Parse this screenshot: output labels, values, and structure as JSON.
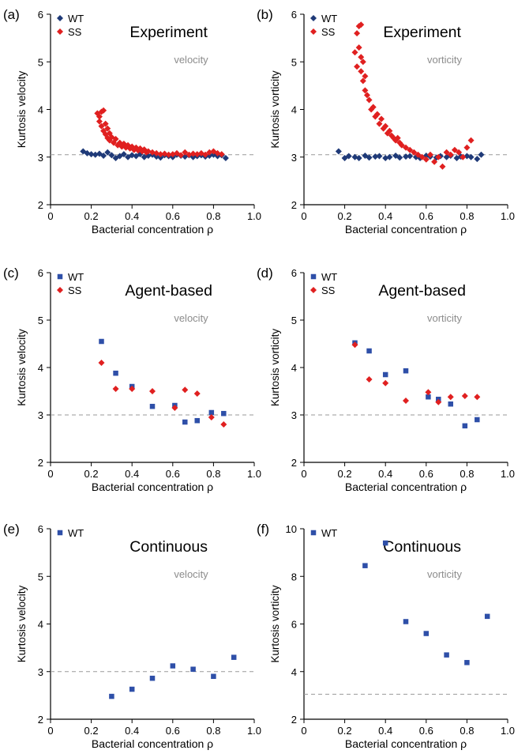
{
  "colors": {
    "wt": "#1f3a78",
    "wt_square": "#2e4fa8",
    "ss": "#e02020",
    "reference": "#9a9a9a",
    "subtitle": "#8c8c8c"
  },
  "chart_data": [
    {
      "panel": "(a)",
      "type": "scatter",
      "title": "Experiment",
      "subtitle": "velocity",
      "xlabel": "Bacterial concentration ρ",
      "ylabel": "Kurtosis velocity",
      "xlim": [
        0,
        1.0
      ],
      "ylim": [
        2,
        6
      ],
      "xticks": [
        "0",
        "0.2",
        "0.4",
        "0.6",
        "0.8",
        "1.0"
      ],
      "xtick_values": [
        0,
        0.2,
        0.4,
        0.6,
        0.8,
        1.0
      ],
      "yticks": [
        "2",
        "3",
        "4",
        "5",
        "6"
      ],
      "ytick_values": [
        2,
        3,
        4,
        5,
        6
      ],
      "reference_y": 3.05,
      "legend_position": "top-left",
      "series": [
        {
          "name": "WT",
          "marker": "diamond",
          "color": "#1f3a78",
          "x": [
            0.16,
            0.18,
            0.2,
            0.22,
            0.24,
            0.26,
            0.28,
            0.3,
            0.32,
            0.34,
            0.36,
            0.38,
            0.4,
            0.42,
            0.44,
            0.46,
            0.48,
            0.5,
            0.52,
            0.54,
            0.56,
            0.58,
            0.6,
            0.62,
            0.64,
            0.66,
            0.68,
            0.7,
            0.72,
            0.74,
            0.76,
            0.78,
            0.8,
            0.82,
            0.84,
            0.86
          ],
          "y": [
            3.12,
            3.08,
            3.06,
            3.05,
            3.07,
            3.03,
            3.1,
            3.04,
            2.98,
            3.02,
            3.06,
            3.0,
            3.04,
            3.02,
            3.06,
            3.0,
            3.03,
            3.05,
            3.01,
            2.99,
            3.04,
            3.02,
            3.0,
            3.05,
            3.03,
            3.01,
            3.04,
            3.0,
            3.02,
            3.04,
            3.01,
            3.03,
            3.05,
            3.02,
            3.04,
            2.98
          ]
        },
        {
          "name": "SS",
          "marker": "diamond",
          "color": "#e02020",
          "x": [
            0.23,
            0.24,
            0.24,
            0.25,
            0.25,
            0.26,
            0.26,
            0.27,
            0.27,
            0.28,
            0.28,
            0.29,
            0.29,
            0.3,
            0.31,
            0.32,
            0.33,
            0.34,
            0.35,
            0.36,
            0.37,
            0.38,
            0.39,
            0.4,
            0.41,
            0.42,
            0.43,
            0.44,
            0.45,
            0.46,
            0.47,
            0.48,
            0.5,
            0.52,
            0.54,
            0.56,
            0.58,
            0.6,
            0.62,
            0.64,
            0.66,
            0.68,
            0.7,
            0.72,
            0.74,
            0.76,
            0.78,
            0.8,
            0.82,
            0.84
          ],
          "y": [
            3.92,
            3.85,
            3.75,
            3.95,
            3.65,
            3.98,
            3.55,
            3.7,
            3.48,
            3.6,
            3.4,
            3.5,
            3.35,
            3.42,
            3.3,
            3.38,
            3.25,
            3.3,
            3.22,
            3.28,
            3.2,
            3.25,
            3.18,
            3.22,
            3.15,
            3.2,
            3.14,
            3.18,
            3.12,
            3.16,
            3.1,
            3.12,
            3.1,
            3.08,
            3.06,
            3.07,
            3.05,
            3.06,
            3.08,
            3.04,
            3.1,
            3.05,
            3.07,
            3.06,
            3.08,
            3.05,
            3.1,
            3.12,
            3.08,
            3.06
          ]
        }
      ]
    },
    {
      "panel": "(b)",
      "type": "scatter",
      "title": "Experiment",
      "subtitle": "vorticity",
      "xlabel": "Bacterial concentration ρ",
      "ylabel": "Kurtosis vorticity",
      "xlim": [
        0,
        1.0
      ],
      "ylim": [
        2,
        6
      ],
      "xticks": [
        "0",
        "0.2",
        "0.4",
        "0.6",
        "0.8",
        "1.0"
      ],
      "xtick_values": [
        0,
        0.2,
        0.4,
        0.6,
        0.8,
        1.0
      ],
      "yticks": [
        "2",
        "3",
        "4",
        "5",
        "6"
      ],
      "ytick_values": [
        2,
        3,
        4,
        5,
        6
      ],
      "reference_y": 3.05,
      "legend_position": "top-left",
      "series": [
        {
          "name": "WT",
          "marker": "diamond",
          "color": "#1f3a78",
          "x": [
            0.17,
            0.2,
            0.22,
            0.25,
            0.27,
            0.3,
            0.32,
            0.35,
            0.37,
            0.4,
            0.42,
            0.45,
            0.47,
            0.5,
            0.52,
            0.55,
            0.57,
            0.6,
            0.62,
            0.65,
            0.67,
            0.7,
            0.72,
            0.75,
            0.77,
            0.8,
            0.82,
            0.85,
            0.87
          ],
          "y": [
            3.12,
            2.98,
            3.02,
            3.0,
            2.98,
            3.03,
            2.99,
            3.01,
            3.02,
            2.98,
            3.0,
            3.03,
            2.99,
            3.01,
            3.02,
            3.0,
            2.98,
            3.03,
            3.01,
            2.99,
            3.02,
            3.0,
            3.03,
            2.98,
            3.01,
            3.02,
            3.0,
            2.96,
            3.05
          ]
        },
        {
          "name": "SS",
          "marker": "diamond",
          "color": "#e02020",
          "x": [
            0.25,
            0.26,
            0.26,
            0.27,
            0.27,
            0.28,
            0.28,
            0.28,
            0.29,
            0.29,
            0.3,
            0.3,
            0.31,
            0.32,
            0.33,
            0.34,
            0.35,
            0.36,
            0.37,
            0.38,
            0.39,
            0.4,
            0.41,
            0.42,
            0.43,
            0.44,
            0.45,
            0.46,
            0.47,
            0.48,
            0.5,
            0.52,
            0.54,
            0.56,
            0.58,
            0.6,
            0.62,
            0.64,
            0.66,
            0.68,
            0.7,
            0.72,
            0.74,
            0.76,
            0.78,
            0.8,
            0.82
          ],
          "y": [
            5.2,
            5.6,
            4.9,
            5.75,
            5.3,
            5.78,
            4.8,
            5.1,
            4.6,
            5.0,
            4.4,
            4.7,
            4.3,
            4.2,
            4.0,
            4.05,
            3.85,
            3.9,
            3.7,
            3.8,
            3.6,
            3.65,
            3.5,
            3.55,
            3.45,
            3.4,
            3.35,
            3.4,
            3.3,
            3.25,
            3.2,
            3.15,
            3.1,
            3.05,
            3.0,
            2.95,
            3.05,
            2.9,
            3.0,
            2.8,
            3.1,
            3.05,
            3.15,
            3.1,
            3.0,
            3.2,
            3.35
          ]
        }
      ]
    },
    {
      "panel": "(c)",
      "type": "scatter",
      "title": "Agent-based",
      "subtitle": "velocity",
      "xlabel": "Bacterial concentration ρ",
      "ylabel": "Kurtosis velocity",
      "xlim": [
        0,
        1.0
      ],
      "ylim": [
        2,
        6
      ],
      "xticks": [
        "0",
        "0.2",
        "0.4",
        "0.6",
        "0.8",
        "1.0"
      ],
      "xtick_values": [
        0,
        0.2,
        0.4,
        0.6,
        0.8,
        1.0
      ],
      "yticks": [
        "2",
        "3",
        "4",
        "5",
        "6"
      ],
      "ytick_values": [
        2,
        3,
        4,
        5,
        6
      ],
      "reference_y": 3.0,
      "legend_position": "top-left",
      "series": [
        {
          "name": "WT",
          "marker": "square",
          "color": "#2e4fa8",
          "x": [
            0.25,
            0.32,
            0.4,
            0.5,
            0.61,
            0.66,
            0.72,
            0.79,
            0.85
          ],
          "y": [
            4.55,
            3.88,
            3.6,
            3.18,
            3.2,
            2.85,
            2.88,
            3.05,
            3.03
          ]
        },
        {
          "name": "SS",
          "marker": "diamond",
          "color": "#e02020",
          "x": [
            0.25,
            0.32,
            0.4,
            0.5,
            0.61,
            0.66,
            0.72,
            0.79,
            0.85
          ],
          "y": [
            4.1,
            3.55,
            3.55,
            3.5,
            3.15,
            3.53,
            3.45,
            2.95,
            2.8
          ]
        }
      ]
    },
    {
      "panel": "(d)",
      "type": "scatter",
      "title": "Agent-based",
      "subtitle": "vorticity",
      "xlabel": "Bacterial concentration ρ",
      "ylabel": "Kurtosis vorticity",
      "xlim": [
        0,
        1.0
      ],
      "ylim": [
        2,
        6
      ],
      "xticks": [
        "0",
        "0.2",
        "0.4",
        "0.6",
        "0.8",
        "1.0"
      ],
      "xtick_values": [
        0,
        0.2,
        0.4,
        0.6,
        0.8,
        1.0
      ],
      "yticks": [
        "2",
        "3",
        "4",
        "5",
        "6"
      ],
      "ytick_values": [
        2,
        3,
        4,
        5,
        6
      ],
      "reference_y": 3.0,
      "legend_position": "top-left",
      "series": [
        {
          "name": "WT",
          "marker": "square",
          "color": "#2e4fa8",
          "x": [
            0.25,
            0.32,
            0.4,
            0.5,
            0.61,
            0.66,
            0.72,
            0.79,
            0.85
          ],
          "y": [
            4.52,
            4.35,
            3.85,
            3.93,
            3.38,
            3.33,
            3.23,
            2.77,
            2.9
          ]
        },
        {
          "name": "SS",
          "marker": "diamond",
          "color": "#e02020",
          "x": [
            0.25,
            0.32,
            0.4,
            0.5,
            0.61,
            0.66,
            0.72,
            0.79,
            0.85
          ],
          "y": [
            4.48,
            3.75,
            3.67,
            3.3,
            3.48,
            3.27,
            3.38,
            3.4,
            3.38
          ]
        }
      ]
    },
    {
      "panel": "(e)",
      "type": "scatter",
      "title": "Continuous",
      "subtitle": "velocity",
      "xlabel": "Bacterial concentration ρ",
      "ylabel": "Kurtosis velocity",
      "xlim": [
        0,
        1.0
      ],
      "ylim": [
        2,
        6
      ],
      "xticks": [
        "0",
        "0.2",
        "0.4",
        "0.6",
        "0.8",
        "1.0"
      ],
      "xtick_values": [
        0,
        0.2,
        0.4,
        0.6,
        0.8,
        1.0
      ],
      "yticks": [
        "2",
        "3",
        "4",
        "5",
        "6"
      ],
      "ytick_values": [
        2,
        3,
        4,
        5,
        6
      ],
      "reference_y": 3.0,
      "legend_position": "top-left",
      "series": [
        {
          "name": "WT",
          "marker": "square",
          "color": "#2e4fa8",
          "x": [
            0.3,
            0.4,
            0.5,
            0.6,
            0.7,
            0.8,
            0.9
          ],
          "y": [
            2.48,
            2.63,
            2.86,
            3.12,
            3.05,
            2.9,
            3.3
          ]
        }
      ]
    },
    {
      "panel": "(f)",
      "type": "scatter",
      "title": "Continuous",
      "subtitle": "vorticity",
      "xlabel": "Bacterial concentration ρ",
      "ylabel": "Kurtosis vorticity",
      "xlim": [
        0,
        1.0
      ],
      "ylim": [
        2,
        10
      ],
      "xticks": [
        "0",
        "0.2",
        "0.4",
        "0.6",
        "0.8",
        "1.0"
      ],
      "xtick_values": [
        0,
        0.2,
        0.4,
        0.6,
        0.8,
        1.0
      ],
      "yticks": [
        "2",
        "4",
        "6",
        "8",
        "10"
      ],
      "ytick_values": [
        2,
        4,
        6,
        8,
        10
      ],
      "reference_y": 3.05,
      "legend_position": "top-left",
      "series": [
        {
          "name": "WT",
          "marker": "square",
          "color": "#2e4fa8",
          "x": [
            0.3,
            0.4,
            0.5,
            0.6,
            0.7,
            0.8,
            0.9
          ],
          "y": [
            8.45,
            9.4,
            6.1,
            5.6,
            4.7,
            4.38,
            6.32
          ]
        }
      ]
    }
  ]
}
